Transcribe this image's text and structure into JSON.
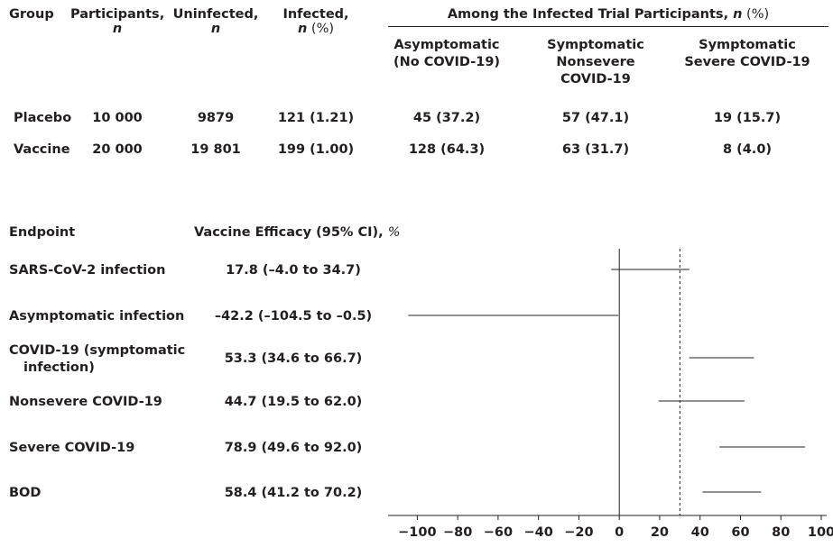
{
  "table": {
    "headers": {
      "group": "Group",
      "participants": "Participants,",
      "participants_unit": "n",
      "uninfected": "Uninfected,",
      "uninfected_unit": "n",
      "infected": "Infected,",
      "infected_unit": "n",
      "infected_pct": " (%)",
      "among_prefix": "Among the Infected Trial Participants, ",
      "among_unit": "n",
      "among_suffix": " (%)",
      "asymptomatic_1": "Asymptomatic",
      "asymptomatic_2": "(No COVID-19)",
      "nonsevere_1": "Symptomatic",
      "nonsevere_2": "Nonsevere",
      "nonsevere_3": "COVID-19",
      "severe_1": "Symptomatic",
      "severe_2": "Severe COVID-19"
    },
    "rows": [
      {
        "group": "Placebo",
        "participants": "10 000",
        "uninfected": "9879",
        "infected": "121 (1.21)",
        "asymptomatic": "45 (37.2)",
        "nonsevere": "57 (47.1)",
        "severe": "19 (15.7)"
      },
      {
        "group": "Vaccine",
        "participants": "20 000",
        "uninfected": "19 801",
        "infected": "199 (1.00)",
        "asymptomatic": "128 (64.3)",
        "nonsevere": "63 (31.7)",
        "severe": "8 (4.0)"
      }
    ]
  },
  "forest": {
    "endpoint_header": "Endpoint",
    "efficacy_header": "Vaccine Efficacy (95% CI), ",
    "efficacy_unit": "%"
  },
  "chart_data": {
    "type": "forest",
    "xlim": [
      -110,
      100
    ],
    "xticks": [
      -100,
      -80,
      -60,
      -40,
      -20,
      0,
      20,
      40,
      60,
      80,
      100
    ],
    "xtick_labels": [
      "−100",
      "−80",
      "−60",
      "−40",
      "−20",
      "0",
      "20",
      "40",
      "60",
      "80",
      "100"
    ],
    "null_line": 0,
    "reference_line": 30,
    "rows": [
      {
        "label": "SARS-CoV-2 infection",
        "label_lines": [
          "SARS-CoV-2 infection"
        ],
        "text": "17.8 (–4.0 to 34.7)",
        "estimate": 17.8,
        "lower": -4.0,
        "upper": 34.7
      },
      {
        "label": "Asymptomatic infection",
        "label_lines": [
          "Asymptomatic infection"
        ],
        "text": "–42.2 (–104.5 to –0.5)",
        "estimate": -42.2,
        "lower": -104.5,
        "upper": -0.5
      },
      {
        "label": "COVID-19 (symptomatic infection)",
        "label_lines": [
          "COVID-19 (symptomatic",
          "infection)"
        ],
        "text": "53.3 (34.6 to 66.7)",
        "estimate": 53.3,
        "lower": 34.6,
        "upper": 66.7
      },
      {
        "label": "Nonsevere COVID-19",
        "label_lines": [
          "Nonsevere COVID-19"
        ],
        "text": "44.7 (19.5 to 62.0)",
        "estimate": 44.7,
        "lower": 19.5,
        "upper": 62.0
      },
      {
        "label": "Severe COVID-19",
        "label_lines": [
          "Severe COVID-19"
        ],
        "text": "78.9 (49.6 to 92.0)",
        "estimate": 78.9,
        "lower": 49.6,
        "upper": 92.0
      },
      {
        "label": "BOD",
        "label_lines": [
          "BOD"
        ],
        "text": "58.4 (41.2 to 70.2)",
        "estimate": 58.4,
        "lower": 41.2,
        "upper": 70.2
      }
    ]
  }
}
